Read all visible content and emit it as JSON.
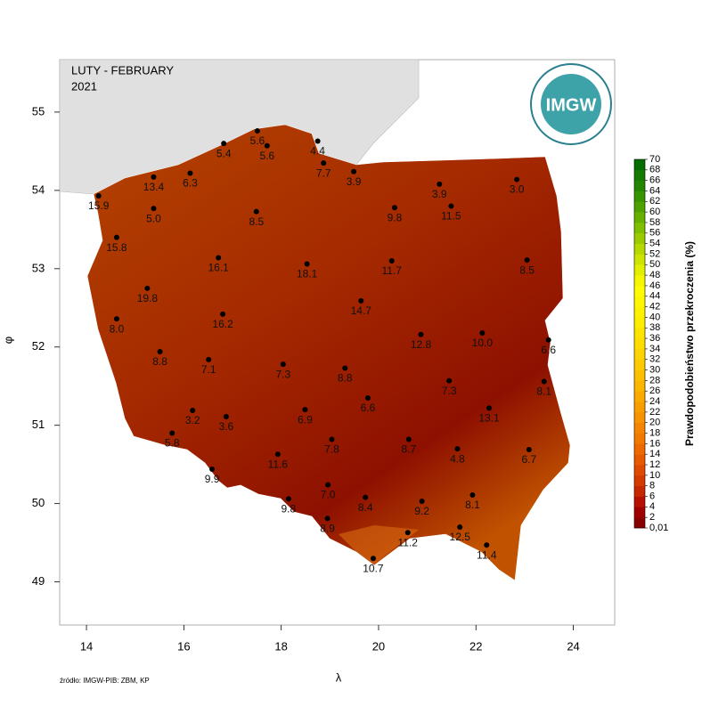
{
  "chart_data": {
    "type": "map",
    "title": "LUTY - FEBRUARY",
    "subtitle": "2021",
    "logo_text": "IMGW",
    "x_label": "λ",
    "y_label": "φ",
    "source": "źródło: IMGW-PIB: ZBM, KP",
    "xlim": [
      13.45,
      24.85
    ],
    "ylim": [
      48.45,
      55.67
    ],
    "xticks": [
      14,
      16,
      18,
      20,
      22,
      24
    ],
    "yticks": [
      49,
      50,
      51,
      52,
      53,
      54,
      55
    ],
    "point_color": "#000000",
    "x": [
      17.51,
      16.82,
      17.71,
      18.75,
      18.87,
      19.49,
      15.38,
      16.13,
      14.25,
      15.38,
      17.49,
      20.33,
      21.25,
      21.49,
      22.84,
      14.62,
      16.71,
      18.53,
      20.27,
      23.05,
      15.25,
      19.64,
      14.62,
      16.8,
      20.87,
      22.13,
      23.49,
      15.51,
      16.51,
      18.04,
      19.31,
      21.45,
      23.4,
      19.78,
      22.27,
      16.18,
      16.87,
      18.49,
      15.76,
      19.04,
      20.62,
      21.62,
      23.09,
      17.93,
      16.58,
      18.96,
      18.15,
      19.73,
      20.89,
      21.93,
      18.95,
      20.6,
      21.67,
      22.22,
      19.89
    ],
    "y": [
      54.76,
      54.6,
      54.57,
      54.63,
      54.35,
      54.24,
      54.17,
      54.22,
      53.93,
      53.77,
      53.73,
      53.78,
      54.08,
      53.8,
      54.14,
      53.4,
      53.14,
      53.06,
      53.1,
      53.11,
      52.75,
      52.59,
      52.36,
      52.42,
      52.16,
      52.18,
      52.09,
      51.94,
      51.84,
      51.78,
      51.73,
      51.57,
      51.56,
      51.35,
      51.22,
      51.19,
      51.11,
      51.2,
      50.9,
      50.82,
      50.82,
      50.7,
      50.69,
      50.63,
      50.44,
      50.24,
      50.06,
      50.08,
      50.03,
      50.11,
      49.81,
      49.63,
      49.7,
      49.47,
      49.3
    ],
    "values": [
      5.6,
      5.4,
      5.6,
      4.4,
      7.7,
      3.9,
      13.4,
      6.3,
      15.9,
      5,
      8.5,
      9.8,
      3.9,
      11.5,
      3,
      15.8,
      16.1,
      18.1,
      11.7,
      8.5,
      19.8,
      14.7,
      8,
      16.2,
      12.8,
      10,
      6.6,
      8.8,
      7.1,
      7.3,
      8.8,
      7.3,
      8.1,
      6.6,
      13.1,
      3.2,
      3.6,
      6.9,
      5.8,
      7.8,
      8.7,
      4.8,
      6.7,
      11.6,
      9.9,
      7,
      9.8,
      8.4,
      9.2,
      8.1,
      8.9,
      11.2,
      12.5,
      11.4,
      10.7
    ],
    "value_labels": [
      "5.6",
      "5.4",
      "5.6",
      "4.4",
      "7.7",
      "3.9",
      "13.4",
      "6.3",
      "15.9",
      "5.0",
      "8.5",
      "9.8",
      "3.9",
      "11.5",
      "3.0",
      "15.8",
      "16.1",
      "18.1",
      "11.7",
      "8.5",
      "19.8",
      "14.7",
      "8.0",
      "16.2",
      "12.8",
      "10.0",
      "6.6",
      "8.8",
      "7.1",
      "7.3",
      "8.8",
      "7.3",
      "8.1",
      "6.6",
      "13.1",
      "3.2",
      "3.6",
      "6.9",
      "5.8",
      "7.8",
      "8.7",
      "4.8",
      "6.7",
      "11.6",
      "9.9",
      "7.0",
      "9.8",
      "8.4",
      "9.2",
      "8.1",
      "8.9",
      "11.2",
      "12.5",
      "11.4",
      "10.7"
    ],
    "legend": {
      "title": "Prawdopodobieństwo przekroczenia (%)",
      "ticks": [
        {
          "value": 0.01,
          "label": "0,01"
        },
        2,
        4,
        6,
        8,
        10,
        12,
        14,
        16,
        18,
        20,
        22,
        24,
        26,
        28,
        30,
        32,
        34,
        36,
        38,
        40,
        42,
        44,
        46,
        48,
        50,
        52,
        54,
        56,
        58,
        60,
        62,
        64,
        66,
        68,
        70
      ],
      "colors": [
        "#8b0000",
        "#a00000",
        "#b81000",
        "#c82800",
        "#d63a00",
        "#e04a00",
        "#e85a00",
        "#ee6a00",
        "#f27800",
        "#f58500",
        "#f79200",
        "#f99e00",
        "#fbaa00",
        "#fcb500",
        "#fdc000",
        "#fdca00",
        "#fed400",
        "#fedd00",
        "#fee500",
        "#ffed00",
        "#fff200",
        "#fff700",
        "#fffb00",
        "#f5f700",
        "#e2ef00",
        "#cce400",
        "#b4d800",
        "#9acb00",
        "#80be00",
        "#66b000",
        "#4ea200",
        "#389400",
        "#248600",
        "#147a00",
        "#066c00"
      ]
    }
  }
}
